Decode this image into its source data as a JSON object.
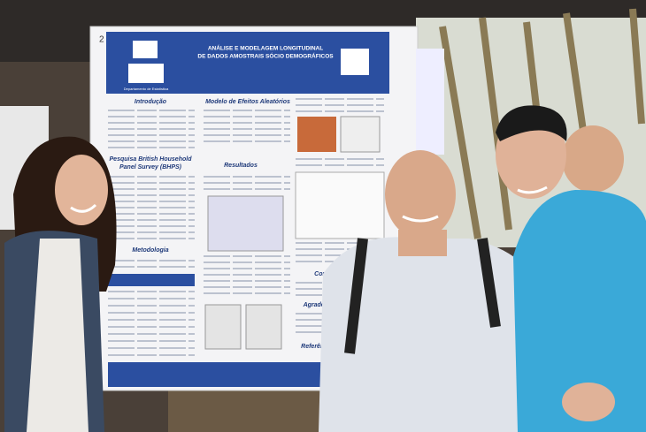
{
  "poster": {
    "number": "2",
    "title_lines": [
      "ANÁLISE E MODELAGEM LONGITUDINAL",
      "DE DADOS AMOSTRAIS SÓCIO DEMOGRÁFICOS"
    ],
    "department": "Departamento de Estatística",
    "sections": [
      "Introdução",
      "Pesquisa British Household",
      "Panel Survey (BHPS)",
      "Metodologia",
      "Modelo de Efeitos Aleatórios",
      "Resultados",
      "Conclusões",
      "Agradecimentos",
      "Referências"
    ]
  }
}
